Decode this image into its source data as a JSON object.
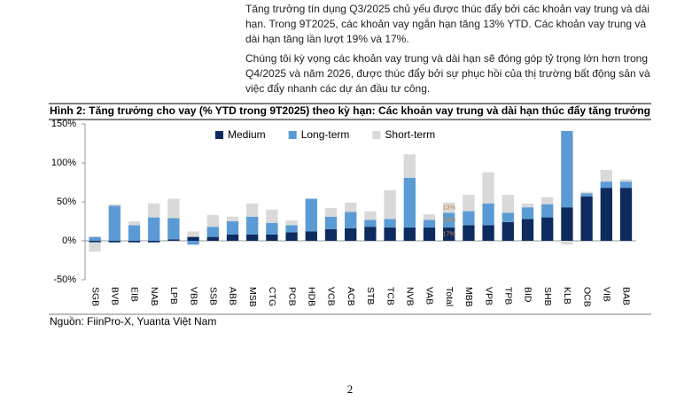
{
  "paragraphs": [
    [
      "Tăng trưởng tín dụng Q3/2025 chủ yếu được thúc đẩy bởi các khoản vay trung và dài",
      "hạn. Trong 9T2025, các khoản vay ngắn hạn tăng 13% YTD. Các khoản vay trung và",
      "dài hạn tăng lần lượt 19% và 17%."
    ],
    [
      "Chúng tôi kỳ vọng các khoản vay trung và dài hạn sẽ đóng góp tỷ trọng lớn hơn trong",
      "Q4/2025 và năm 2026, được thúc đẩy bởi sự phục hồi của thị trường bất động sản và",
      "việc đẩy nhanh các dự án đầu tư công."
    ]
  ],
  "figure_title": "Hình 2:  Tăng trưởng cho vay (% YTD trong 9T2025) theo kỳ hạn: Các khoản vay trung và dài hạn thúc đẩy tăng trưởng",
  "chart_data": {
    "type": "stacked-bar",
    "categories": [
      "SGB",
      "BVB",
      "EIB",
      "NAB",
      "LPB",
      "VBB",
      "SSB",
      "ABB",
      "MSB",
      "CTG",
      "PCB",
      "HDB",
      "VCB",
      "ACB",
      "STB",
      "TCB",
      "NVB",
      "VAB",
      "Total",
      "MBB",
      "VPB",
      "TPB",
      "BID",
      "SHB",
      "KLB",
      "OCB",
      "VIB",
      "BAB"
    ],
    "series": [
      {
        "name": "Medium",
        "color": "#0d2b5e",
        "values": [
          -2,
          -2,
          -2,
          -2,
          2,
          5,
          5,
          8,
          8,
          8,
          11,
          12,
          15,
          16,
          18,
          17,
          17,
          17,
          17,
          20,
          20,
          24,
          28,
          30,
          43,
          57,
          68,
          68
        ],
        "value_labels": [
          null,
          null,
          null,
          null,
          null,
          null,
          null,
          null,
          null,
          null,
          null,
          null,
          null,
          null,
          null,
          null,
          null,
          null,
          "17%",
          null,
          null,
          null,
          null,
          null,
          null,
          null,
          null,
          null
        ]
      },
      {
        "name": "Long-term",
        "color": "#5b9bd5",
        "values": [
          5,
          45,
          20,
          30,
          27,
          -5,
          13,
          17,
          23,
          15,
          9,
          42,
          16,
          21,
          9,
          11,
          64,
          10,
          19,
          18,
          28,
          12,
          15,
          17,
          98,
          4,
          8,
          8
        ],
        "value_labels": [
          null,
          null,
          null,
          null,
          null,
          null,
          null,
          null,
          null,
          null,
          null,
          null,
          null,
          null,
          null,
          null,
          null,
          null,
          "19%",
          null,
          null,
          null,
          null,
          null,
          null,
          null,
          null,
          null
        ]
      },
      {
        "name": "Short-term",
        "color": "#d9d9d9",
        "values": [
          -12,
          2,
          5,
          18,
          25,
          7,
          15,
          6,
          17,
          17,
          6,
          0,
          11,
          12,
          11,
          37,
          30,
          7,
          13,
          21,
          40,
          23,
          5,
          9,
          -5,
          2,
          15,
          3
        ],
        "value_labels": [
          null,
          null,
          null,
          null,
          null,
          null,
          null,
          null,
          null,
          null,
          null,
          null,
          null,
          null,
          null,
          null,
          null,
          null,
          "13%",
          null,
          null,
          null,
          null,
          null,
          null,
          null,
          null,
          null
        ]
      }
    ],
    "ylim": [
      -50,
      150
    ],
    "yticks": [
      {
        "value": -50,
        "label": "-50%"
      },
      {
        "value": 0,
        "label": "0%"
      },
      {
        "value": 50,
        "label": "50%"
      },
      {
        "value": 100,
        "label": "100%"
      },
      {
        "value": 150,
        "label": "150%"
      }
    ],
    "legend": "top"
  },
  "source": "Nguồn: FiinPro-X, Yuanta Việt Nam",
  "page_number": "2"
}
